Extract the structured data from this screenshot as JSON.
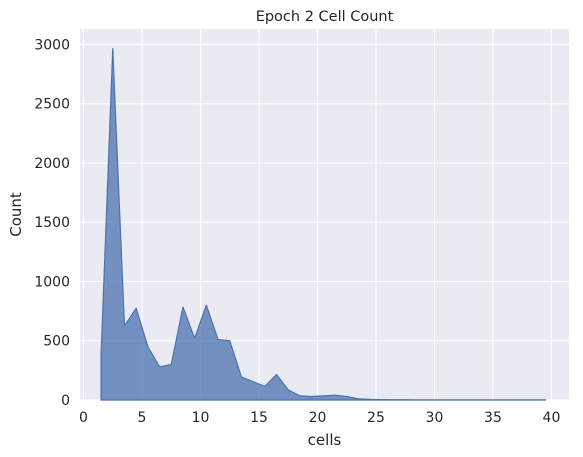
{
  "chart_data": {
    "type": "area",
    "title": "Epoch 2 Cell Count",
    "xlabel": "cells",
    "ylabel": "Count",
    "xlim": [
      -0.3,
      41.5
    ],
    "ylim": [
      0,
      3130
    ],
    "xticks": [
      0,
      5,
      10,
      15,
      20,
      25,
      30,
      35,
      40
    ],
    "yticks": [
      0,
      500,
      1000,
      1500,
      2000,
      2500,
      3000
    ],
    "grid": true,
    "legend": "none",
    "fill_color": "#4c72b0",
    "background_color": "#eaeaf2",
    "series": [
      {
        "x": [
          1.5,
          1.5,
          2.5,
          3.5,
          4.5,
          5.5,
          6.5,
          7.5,
          8.5,
          9.5,
          10.5,
          11.5,
          12.5,
          13.5,
          14.5,
          15.5,
          16.5,
          17.5,
          18.5,
          19.5,
          20.5,
          21.5,
          22.5,
          23.5,
          24.5,
          25.5,
          26.5,
          27.5,
          28.5,
          29.5,
          30.5,
          31.5,
          32.5,
          33.5,
          34.5,
          35.5,
          36.5,
          37.5,
          38.5,
          39.5,
          39.5
        ],
        "y": [
          0,
          380,
          2965,
          625,
          775,
          450,
          280,
          300,
          785,
          520,
          800,
          510,
          500,
          195,
          155,
          115,
          215,
          85,
          35,
          30,
          35,
          40,
          30,
          10,
          5,
          3,
          2,
          2,
          1,
          1,
          1,
          1,
          1,
          1,
          1,
          1,
          1,
          1,
          1,
          1,
          0
        ]
      }
    ]
  }
}
